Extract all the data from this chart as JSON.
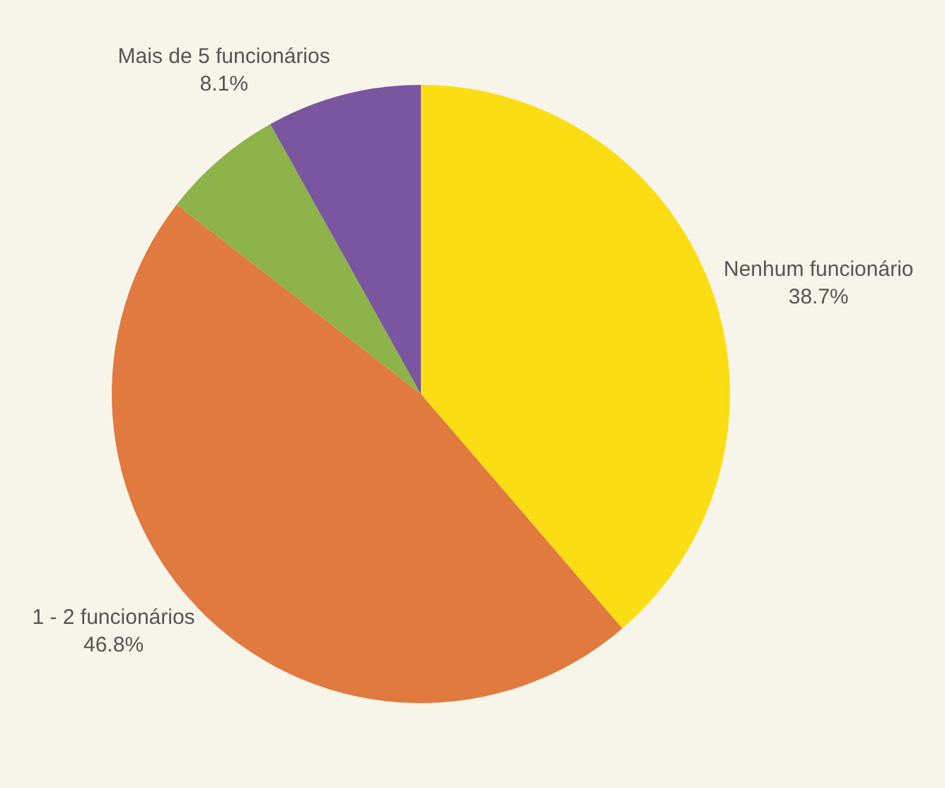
{
  "chart_data": {
    "type": "pie",
    "categories": [
      "Nenhum funcionário",
      "1 - 2 funcionários",
      null,
      "Mais de 5 funcionários"
    ],
    "values": [
      38.7,
      46.8,
      6.4,
      8.1
    ],
    "value_labels": [
      "38.7%",
      "46.8%",
      null,
      "8.1%"
    ],
    "colors": [
      "#fbdd13",
      "#e07a3e",
      "#8db34a",
      "#7a56a0"
    ],
    "legend": false
  }
}
